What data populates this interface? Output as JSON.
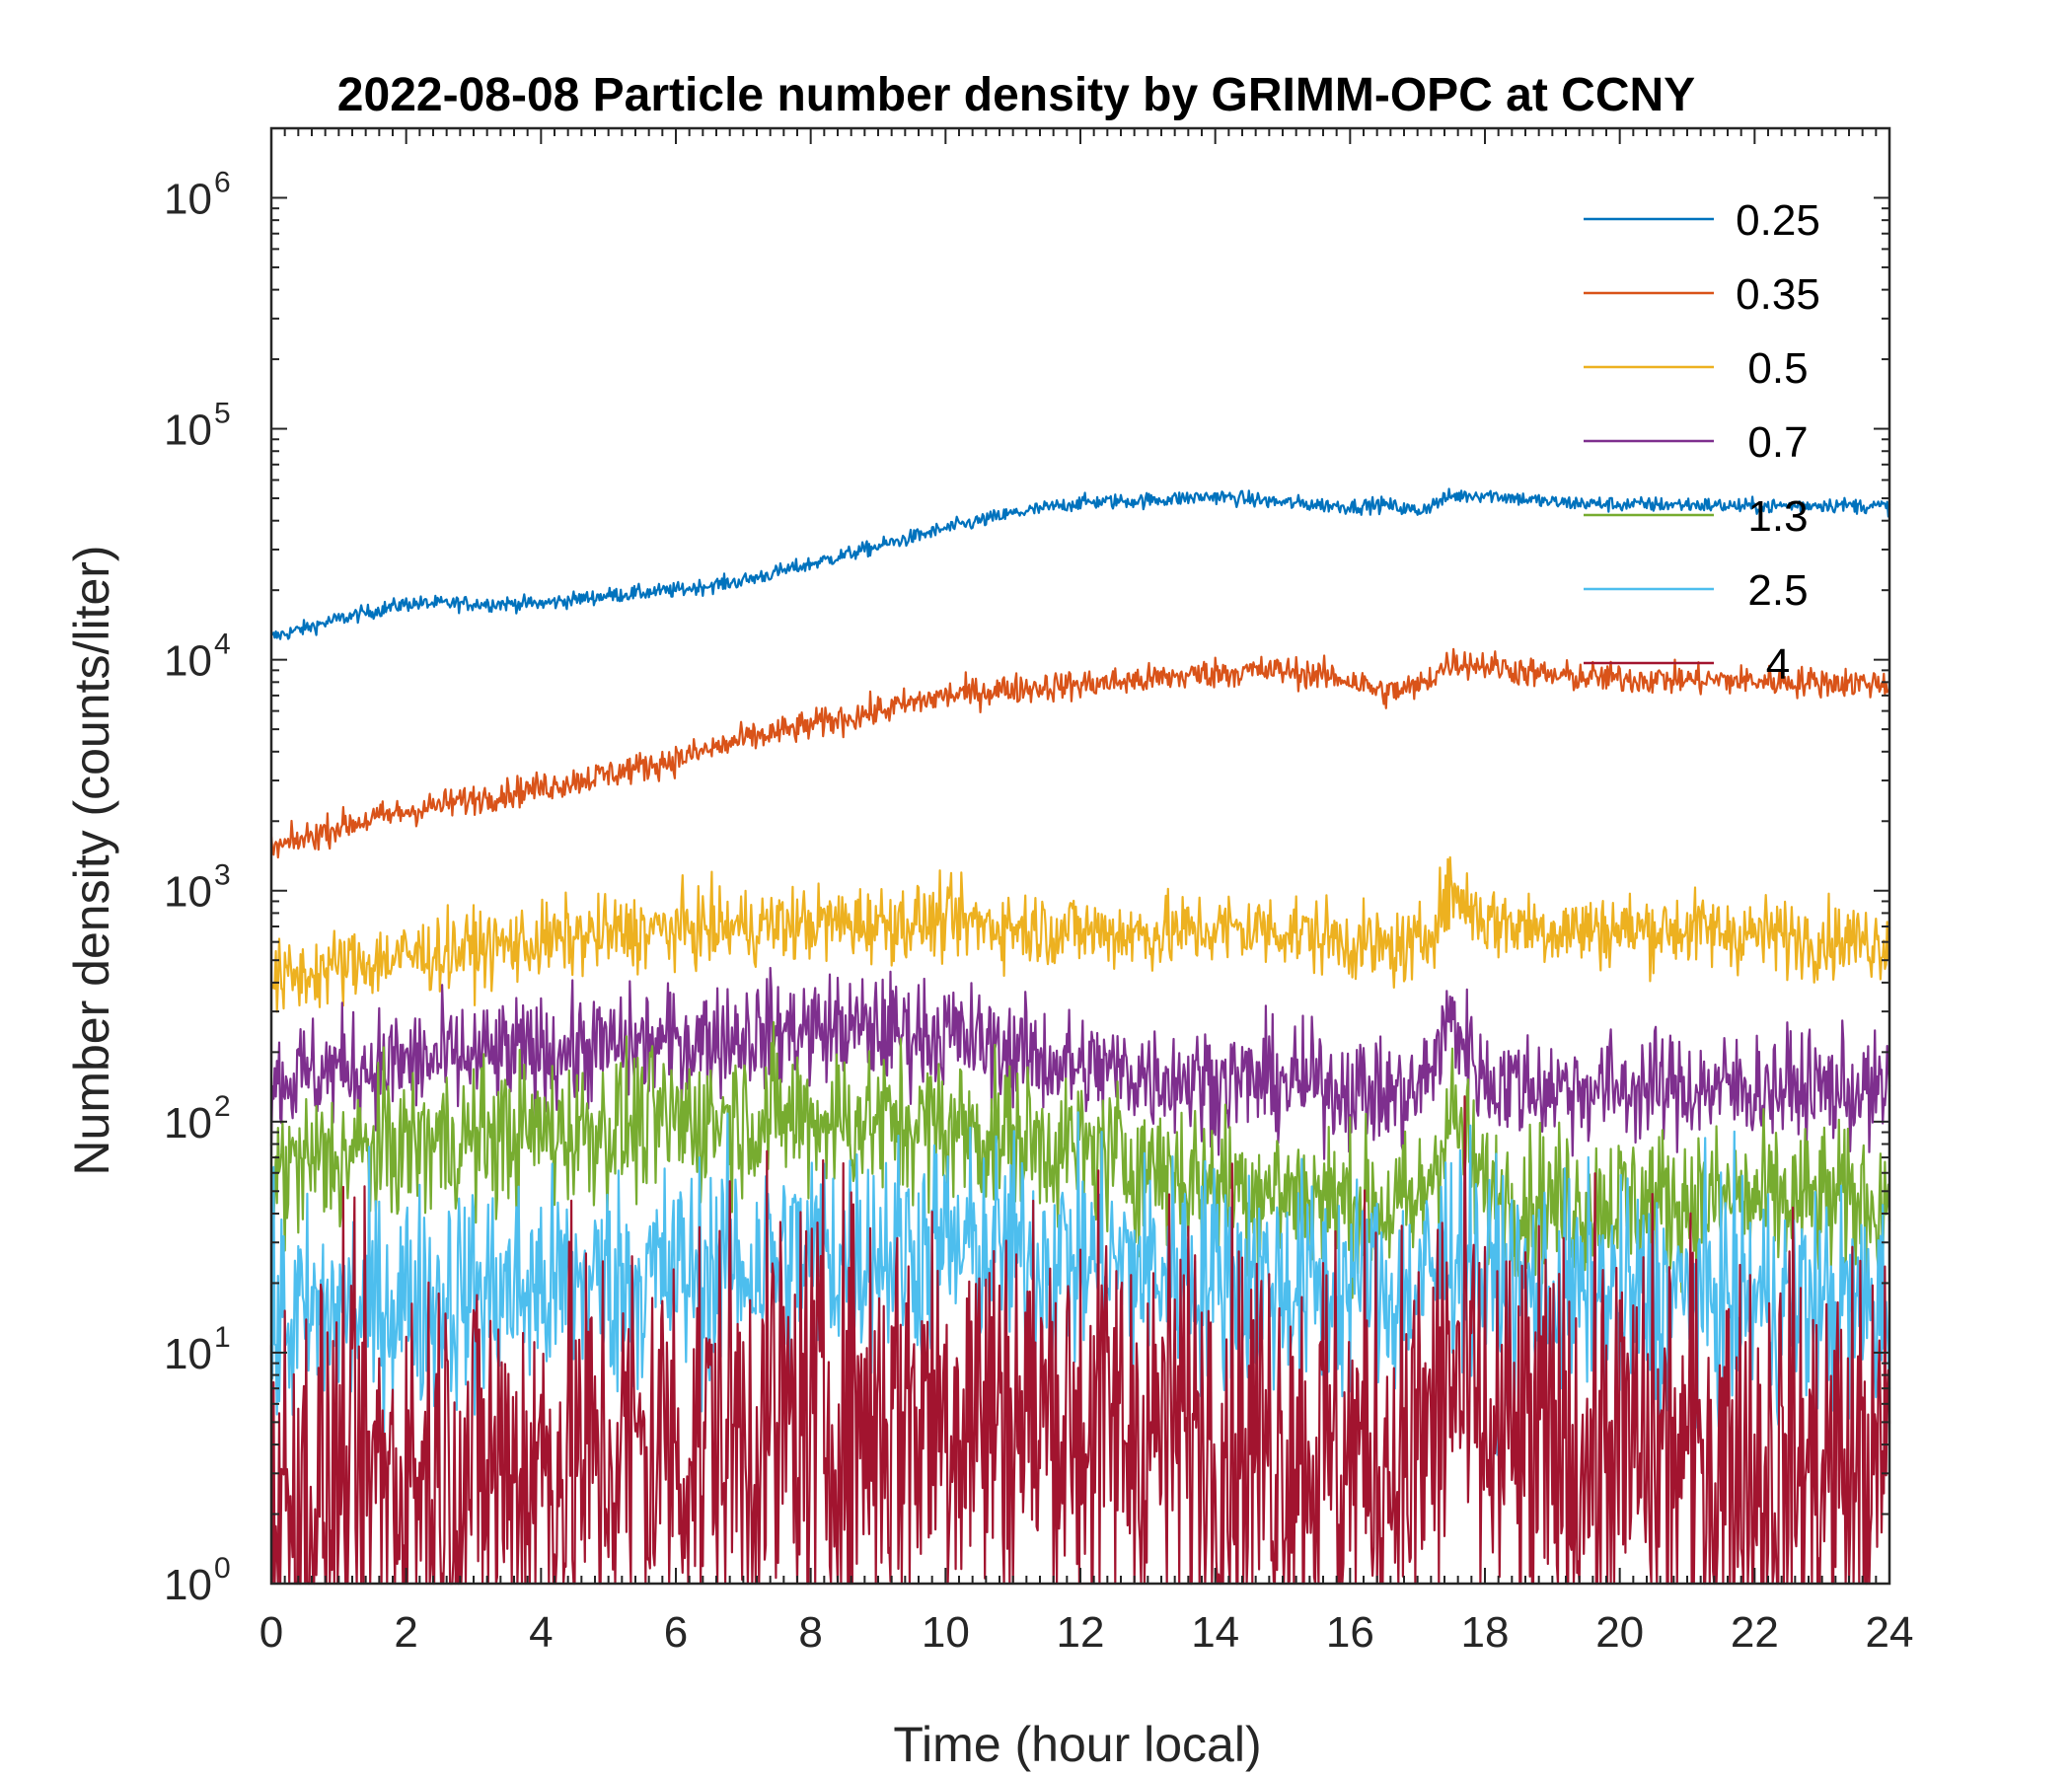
{
  "chart_data": {
    "type": "line",
    "title": "2022-08-08 Particle number density by GRIMM-OPC at CCNY",
    "xlabel": "Time (hour local)",
    "ylabel": "Number density (counts/liter)",
    "xlim": [
      0,
      24
    ],
    "ylim": [
      1,
      2000000
    ],
    "yscale": "log",
    "x_ticks": [
      "0",
      "2",
      "4",
      "6",
      "8",
      "10",
      "12",
      "14",
      "16",
      "18",
      "20",
      "22",
      "24"
    ],
    "y_ticks": [
      {
        "base": "10",
        "exp": "0"
      },
      {
        "base": "10",
        "exp": "1"
      },
      {
        "base": "10",
        "exp": "2"
      },
      {
        "base": "10",
        "exp": "3"
      },
      {
        "base": "10",
        "exp": "4"
      },
      {
        "base": "10",
        "exp": "5"
      },
      {
        "base": "10",
        "exp": "6"
      }
    ],
    "legend_position": "top-right",
    "grid": false,
    "x": [
      0,
      1,
      2,
      3,
      4,
      5,
      6,
      7,
      8,
      9,
      10,
      11,
      12,
      13,
      14,
      15,
      16,
      16.5,
      17,
      17.5,
      18,
      19,
      20,
      21,
      22,
      23,
      24
    ],
    "series": [
      {
        "name": "0.25",
        "color": "#0072BD",
        "noise": 0.03,
        "values": [
          12500,
          15000,
          17500,
          17500,
          17500,
          19000,
          20000,
          22000,
          26000,
          31000,
          37000,
          43000,
          48000,
          49000,
          51000,
          48000,
          46000,
          47000,
          44000,
          51000,
          52000,
          48000,
          47000,
          47000,
          46000,
          47000,
          46000
        ]
      },
      {
        "name": "0.35",
        "color": "#D95319",
        "noise": 0.06,
        "values": [
          1500,
          1900,
          2200,
          2500,
          2800,
          3200,
          3700,
          4500,
          5200,
          6000,
          7000,
          7500,
          7800,
          8200,
          8800,
          9000,
          8200,
          7200,
          7600,
          9800,
          9500,
          8500,
          8300,
          8200,
          8100,
          8000,
          7900
        ]
      },
      {
        "name": "0.5",
        "color": "#EDB120",
        "noise": 0.15,
        "values": [
          400,
          470,
          520,
          560,
          600,
          650,
          680,
          700,
          720,
          730,
          740,
          700,
          670,
          650,
          680,
          680,
          600,
          560,
          560,
          1000,
          750,
          680,
          680,
          680,
          650,
          620,
          600
        ]
      },
      {
        "name": "0.7",
        "color": "#7E2F8E",
        "noise": 0.22,
        "values": [
          150,
          170,
          180,
          190,
          200,
          210,
          220,
          240,
          250,
          250,
          240,
          200,
          170,
          160,
          150,
          150,
          140,
          130,
          130,
          280,
          150,
          140,
          140,
          140,
          140,
          140,
          130
        ]
      },
      {
        "name": "1.3",
        "color": "#77AC30",
        "noise": 0.3,
        "values": [
          60,
          70,
          80,
          85,
          90,
          95,
          100,
          105,
          105,
          100,
          95,
          85,
          75,
          65,
          55,
          50,
          45,
          42,
          42,
          110,
          48,
          45,
          45,
          45,
          45,
          45,
          45
        ]
      },
      {
        "name": "2.5",
        "color": "#4DBEEE",
        "noise": 0.45,
        "values": [
          13,
          15,
          17,
          18,
          19,
          20,
          22,
          24,
          26,
          28,
          28,
          27,
          25,
          23,
          22,
          20,
          19,
          18,
          18,
          30,
          20,
          18,
          17,
          17,
          17,
          16,
          16
        ]
      },
      {
        "name": "4",
        "color": "#A2142F",
        "noise": 0.9,
        "values": [
          2,
          2.5,
          3,
          3,
          3.2,
          3.5,
          4,
          4.5,
          5,
          5.5,
          6,
          5.5,
          5,
          4.5,
          4.5,
          4,
          3.5,
          3.5,
          3.5,
          8,
          4,
          3.5,
          3.5,
          3.5,
          3.2,
          3,
          3
        ]
      }
    ]
  }
}
